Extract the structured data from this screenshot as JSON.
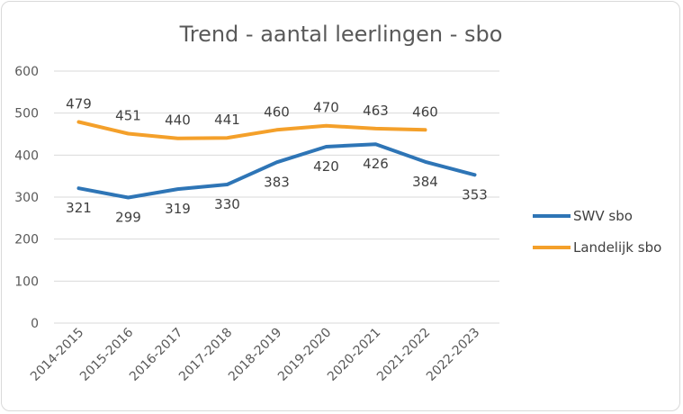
{
  "chart_data": {
    "type": "line",
    "title": "Trend - aantal leerlingen - sbo",
    "xlabel": "",
    "ylabel": "",
    "categories": [
      "2014-2015",
      "2015-2016",
      "2016-2017",
      "2017-2018",
      "2018-2019",
      "2019-2020",
      "2020-2021",
      "2021-2022",
      "2022-2023"
    ],
    "ylim": [
      0,
      600
    ],
    "yticks": [
      0,
      100,
      200,
      300,
      400,
      500,
      600
    ],
    "grid": true,
    "legend_position": "right",
    "series": [
      {
        "name": "SWV sbo",
        "color": "#2e75b6",
        "values": [
          321,
          299,
          319,
          330,
          383,
          420,
          426,
          384,
          353
        ],
        "label_position": "below"
      },
      {
        "name": "Landelijk sbo",
        "color": "#f4a02a",
        "values": [
          479,
          451,
          440,
          441,
          460,
          470,
          463,
          460,
          null
        ],
        "label_position": "above"
      }
    ]
  }
}
